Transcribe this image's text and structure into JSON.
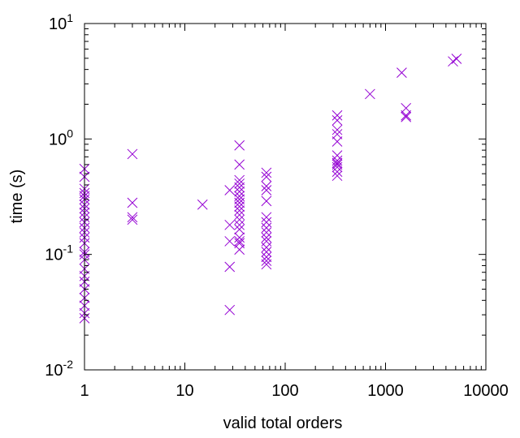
{
  "chart_data": {
    "type": "scatter",
    "title": "",
    "xlabel": "valid total orders",
    "ylabel": "time (s)",
    "x_scale": "log",
    "y_scale": "log",
    "xlim": [
      1,
      10000
    ],
    "ylim": [
      0.01,
      10
    ],
    "grid": false,
    "legend": "none",
    "marker": "x",
    "marker_color": "#9400d3",
    "x_ticks": [
      {
        "value": 1,
        "label": "1"
      },
      {
        "value": 10,
        "label": "10"
      },
      {
        "value": 100,
        "label": "100"
      },
      {
        "value": 1000,
        "label": "1000"
      },
      {
        "value": 10000,
        "label": "10000"
      }
    ],
    "y_ticks": [
      {
        "value": 0.01,
        "base": "10",
        "exp": "-2"
      },
      {
        "value": 0.1,
        "base": "10",
        "exp": "-1"
      },
      {
        "value": 1,
        "base": "10",
        "exp": "0"
      },
      {
        "value": 10,
        "base": "10",
        "exp": "1"
      }
    ],
    "series": [
      {
        "points": [
          [
            1,
            0.55
          ],
          [
            1,
            0.47
          ],
          [
            1,
            0.37
          ],
          [
            1,
            0.34
          ],
          [
            1,
            0.32
          ],
          [
            1,
            0.3
          ],
          [
            1,
            0.27
          ],
          [
            1,
            0.25
          ],
          [
            1,
            0.23
          ],
          [
            1,
            0.21
          ],
          [
            1,
            0.19
          ],
          [
            1,
            0.17
          ],
          [
            1,
            0.155
          ],
          [
            1,
            0.14
          ],
          [
            1,
            0.125
          ],
          [
            1,
            0.105
          ],
          [
            1,
            0.1
          ],
          [
            1,
            0.09
          ],
          [
            1,
            0.075
          ],
          [
            1,
            0.065
          ],
          [
            1,
            0.058
          ],
          [
            1,
            0.05
          ],
          [
            1,
            0.042
          ],
          [
            1,
            0.036
          ],
          [
            1,
            0.031
          ],
          [
            1,
            0.028
          ],
          [
            3,
            0.74
          ],
          [
            3,
            0.28
          ],
          [
            3,
            0.21
          ],
          [
            3,
            0.2
          ],
          [
            15,
            0.27
          ],
          [
            28,
            0.36
          ],
          [
            28,
            0.18
          ],
          [
            28,
            0.13
          ],
          [
            28,
            0.078
          ],
          [
            28,
            0.033
          ],
          [
            35,
            0.88
          ],
          [
            35,
            0.6
          ],
          [
            35,
            0.44
          ],
          [
            35,
            0.41
          ],
          [
            35,
            0.38
          ],
          [
            35,
            0.35
          ],
          [
            35,
            0.32
          ],
          [
            35,
            0.3
          ],
          [
            35,
            0.28
          ],
          [
            35,
            0.26
          ],
          [
            35,
            0.24
          ],
          [
            35,
            0.22
          ],
          [
            35,
            0.2
          ],
          [
            35,
            0.18
          ],
          [
            35,
            0.165
          ],
          [
            35,
            0.14
          ],
          [
            35,
            0.13
          ],
          [
            35,
            0.125
          ],
          [
            35,
            0.11
          ],
          [
            65,
            0.51
          ],
          [
            65,
            0.47
          ],
          [
            65,
            0.39
          ],
          [
            65,
            0.36
          ],
          [
            65,
            0.29
          ],
          [
            65,
            0.21
          ],
          [
            65,
            0.19
          ],
          [
            65,
            0.17
          ],
          [
            65,
            0.155
          ],
          [
            65,
            0.14
          ],
          [
            65,
            0.13
          ],
          [
            65,
            0.115
          ],
          [
            65,
            0.105
          ],
          [
            65,
            0.095
          ],
          [
            65,
            0.088
          ],
          [
            65,
            0.082
          ],
          [
            330,
            1.6
          ],
          [
            330,
            1.45
          ],
          [
            330,
            1.2
          ],
          [
            330,
            1.1
          ],
          [
            330,
            0.95
          ],
          [
            330,
            0.72
          ],
          [
            330,
            0.65
          ],
          [
            330,
            0.62
          ],
          [
            330,
            0.6
          ],
          [
            330,
            0.57
          ],
          [
            330,
            0.52
          ],
          [
            330,
            0.48
          ],
          [
            700,
            2.45
          ],
          [
            1450,
            3.75
          ],
          [
            1600,
            1.85
          ],
          [
            1600,
            1.6
          ],
          [
            1600,
            1.55
          ],
          [
            4700,
            4.7
          ],
          [
            5100,
            4.95
          ]
        ]
      }
    ]
  }
}
